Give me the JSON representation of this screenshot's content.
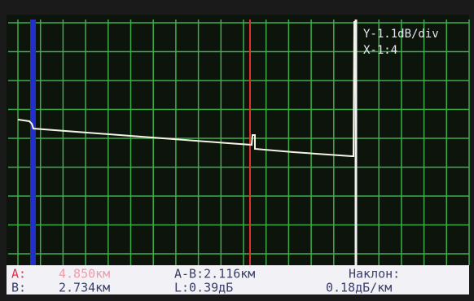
{
  "scale": {
    "y": "Y-1.1dB/div",
    "x": "X-1:4"
  },
  "readout": {
    "a_label": "A:",
    "a_value": "4.850км",
    "ab": "A-B:2.116км",
    "slope_label": "Наклон:",
    "b_label": "B:",
    "b_value": "2.734км",
    "loss": "L:0.39дБ",
    "slope_value": "0.18дБ/км"
  }
}
